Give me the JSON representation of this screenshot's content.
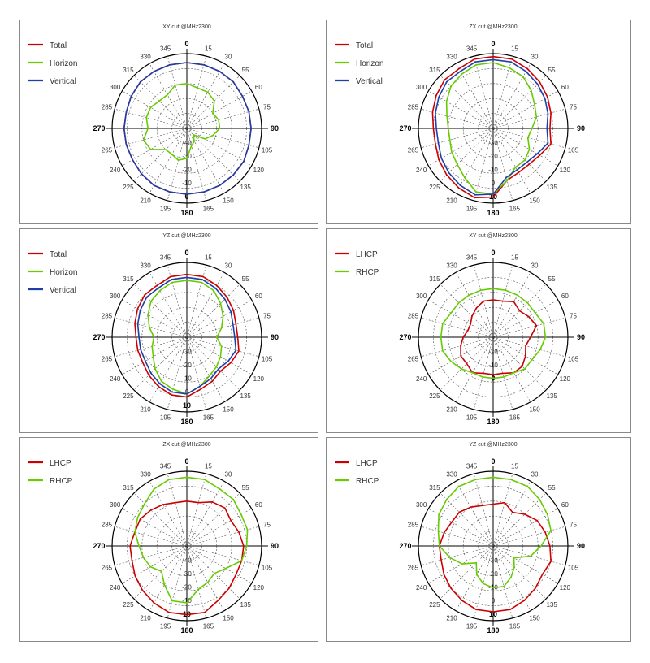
{
  "chart_data": [
    {
      "type": "polar-line",
      "title": "XY cut @MHz2300",
      "angle_labels": [
        "0",
        "15",
        "30",
        "55",
        "60",
        "75",
        "90",
        "105",
        "120",
        "135",
        "150",
        "165",
        "180",
        "195",
        "210",
        "225",
        "240",
        "265",
        "270",
        "285",
        "300",
        "315",
        "330",
        "345"
      ],
      "radial_labels": [
        "-40",
        "-30",
        "-20",
        "-10",
        "0"
      ],
      "rlim": [
        -40,
        10
      ],
      "grid": true,
      "legend_position": "top-left",
      "series": [
        {
          "name": "Total",
          "color": "#cc0000",
          "values": [
            4,
            4,
            4,
            4,
            3,
            3,
            3,
            3,
            4,
            4,
            4,
            4,
            4,
            4,
            4,
            3,
            2,
            2,
            2,
            2,
            3,
            4,
            4,
            4
          ]
        },
        {
          "name": "Horizon",
          "color": "#66cc00",
          "values": [
            -10,
            -12,
            -12,
            -14,
            -20,
            -18,
            -18,
            -22,
            -26,
            -34,
            -30,
            -28,
            -20,
            -18,
            -20,
            -20,
            -12,
            -10,
            -14,
            -12,
            -12,
            -14,
            -14,
            -10
          ]
        },
        {
          "name": "Vertical",
          "color": "#1f3fa8",
          "values": [
            4,
            4,
            4,
            4,
            3,
            3,
            3,
            3,
            4,
            4,
            4,
            4,
            4,
            4,
            4,
            3,
            2,
            2,
            2,
            2,
            3,
            4,
            4,
            4
          ]
        }
      ]
    },
    {
      "type": "polar-line",
      "title": "ZX cut @MHz2300",
      "angle_labels": [
        "0",
        "15",
        "30",
        "55",
        "60",
        "75",
        "90",
        "105",
        "120",
        "135",
        "150",
        "165",
        "180",
        "195",
        "210",
        "225",
        "240",
        "265",
        "270",
        "285",
        "300",
        "315",
        "330",
        "345"
      ],
      "radial_labels": [
        "-30",
        "-20",
        "-10",
        "0",
        "10"
      ],
      "rlim": [
        -40,
        10
      ],
      "grid": true,
      "legend_position": "top-left",
      "series": [
        {
          "name": "Total",
          "color": "#cc0000",
          "values": [
            8,
            8,
            6,
            4,
            2,
            0,
            -2,
            0,
            -4,
            -6,
            -6,
            -4,
            6,
            8,
            6,
            4,
            2,
            0,
            0,
            2,
            4,
            6,
            6,
            8
          ]
        },
        {
          "name": "Horizon",
          "color": "#66cc00",
          "values": [
            4,
            2,
            0,
            -4,
            -8,
            -10,
            -14,
            -16,
            -12,
            -10,
            -10,
            -4,
            4,
            4,
            -2,
            -6,
            -8,
            -10,
            -10,
            -8,
            -4,
            0,
            2,
            4
          ]
        },
        {
          "name": "Vertical",
          "color": "#1f3fa8",
          "values": [
            6,
            6,
            4,
            2,
            0,
            -2,
            -4,
            -2,
            -6,
            -8,
            -8,
            -6,
            4,
            6,
            4,
            2,
            0,
            -2,
            -2,
            0,
            2,
            4,
            4,
            6
          ]
        }
      ]
    },
    {
      "type": "polar-line",
      "title": "YZ cut @MHz2300",
      "angle_labels": [
        "0",
        "15",
        "30",
        "55",
        "60",
        "75",
        "90",
        "105",
        "120",
        "135",
        "150",
        "165",
        "180",
        "195",
        "210",
        "225",
        "240",
        "265",
        "270",
        "285",
        "300",
        "315",
        "330",
        "345"
      ],
      "radial_labels": [
        "-30",
        "-20",
        "-10",
        "0",
        "10"
      ],
      "rlim": [
        -40,
        10
      ],
      "grid": true,
      "legend_position": "top-left",
      "series": [
        {
          "name": "Total",
          "color": "#cc0000",
          "values": [
            2,
            2,
            0,
            -2,
            -4,
            -6,
            -6,
            -4,
            -6,
            -8,
            -6,
            -4,
            0,
            0,
            -2,
            -4,
            -6,
            -6,
            -6,
            -4,
            -2,
            0,
            0,
            2
          ]
        },
        {
          "name": "Horizon",
          "color": "#66cc00",
          "values": [
            -2,
            -2,
            -4,
            -8,
            -12,
            -16,
            -20,
            -16,
            -14,
            -12,
            -10,
            -6,
            -2,
            -4,
            -6,
            -10,
            -14,
            -16,
            -18,
            -14,
            -10,
            -6,
            -4,
            -2
          ]
        },
        {
          "name": "Vertical",
          "color": "#1f3fa8",
          "values": [
            0,
            0,
            -2,
            -4,
            -6,
            -8,
            -8,
            -6,
            -8,
            -10,
            -8,
            -6,
            -2,
            -2,
            -4,
            -6,
            -8,
            -8,
            -8,
            -6,
            -4,
            -2,
            -2,
            0
          ]
        }
      ]
    },
    {
      "type": "polar-line",
      "title": "XY cut @MHz2300",
      "angle_labels": [
        "0",
        "15",
        "30",
        "55",
        "60",
        "75",
        "90",
        "105",
        "120",
        "135",
        "150",
        "165",
        "180",
        "195",
        "210",
        "225",
        "240",
        "265",
        "270",
        "285",
        "300",
        "315",
        "330",
        "345"
      ],
      "radial_labels": [
        "-20",
        "-10",
        "0"
      ],
      "rlim": [
        -30,
        10
      ],
      "grid": true,
      "legend_position": "top-left",
      "series": [
        {
          "name": "LHCP",
          "color": "#cc0000",
          "values": [
            -10,
            -10,
            -8,
            -10,
            -8,
            -6,
            -10,
            -12,
            -10,
            -8,
            -8,
            -10,
            -10,
            -10,
            -8,
            -10,
            -10,
            -12,
            -14,
            -16,
            -16,
            -14,
            -12,
            -10
          ]
        },
        {
          "name": "RHCP",
          "color": "#66cc00",
          "values": [
            -4,
            -4,
            -4,
            -4,
            -4,
            -2,
            -2,
            -4,
            -6,
            -6,
            -8,
            -8,
            -8,
            -8,
            -8,
            -6,
            -4,
            -2,
            -2,
            -2,
            -4,
            -4,
            -4,
            -4
          ]
        }
      ]
    },
    {
      "type": "polar-line",
      "title": "ZX cut @MHz2300",
      "angle_labels": [
        "0",
        "15",
        "30",
        "55",
        "60",
        "75",
        "90",
        "105",
        "120",
        "135",
        "150",
        "165",
        "180",
        "195",
        "210",
        "225",
        "240",
        "265",
        "270",
        "285",
        "300",
        "315",
        "330",
        "345"
      ],
      "radial_labels": [
        "-40",
        "-30",
        "-20",
        "-10",
        "10"
      ],
      "rlim": [
        -40,
        10
      ],
      "grid": true,
      "legend_position": "top-left",
      "series": [
        {
          "name": "LHCP",
          "color": "#cc0000",
          "values": [
            -10,
            -10,
            -6,
            -4,
            -6,
            -4,
            -2,
            -2,
            -2,
            0,
            2,
            6,
            6,
            6,
            4,
            2,
            0,
            -2,
            -2,
            -4,
            -4,
            -6,
            -8,
            -10
          ]
        },
        {
          "name": "RHCP",
          "color": "#66cc00",
          "values": [
            6,
            6,
            4,
            4,
            2,
            2,
            0,
            -2,
            -10,
            -14,
            -12,
            -10,
            -2,
            -2,
            -10,
            -16,
            -12,
            -10,
            -8,
            -4,
            -2,
            0,
            4,
            6
          ]
        }
      ]
    },
    {
      "type": "polar-line",
      "title": "YZ cut @MHz2300",
      "angle_labels": [
        "0",
        "15",
        "30",
        "55",
        "60",
        "75",
        "90",
        "105",
        "120",
        "135",
        "150",
        "165",
        "180",
        "195",
        "210",
        "225",
        "240",
        "265",
        "270",
        "285",
        "300",
        "315",
        "330",
        "345"
      ],
      "radial_labels": [
        "-30",
        "-20",
        "-10",
        "0",
        "10"
      ],
      "rlim": [
        -40,
        10
      ],
      "grid": true,
      "legend_position": "top-left",
      "series": [
        {
          "name": "LHCP",
          "color": "#cc0000",
          "values": [
            -12,
            -10,
            -14,
            -10,
            -6,
            -4,
            -2,
            0,
            -2,
            0,
            2,
            4,
            4,
            4,
            2,
            0,
            -2,
            -4,
            -4,
            -6,
            -8,
            -8,
            -10,
            -12
          ]
        },
        {
          "name": "RHCP",
          "color": "#66cc00",
          "values": [
            6,
            6,
            6,
            4,
            2,
            0,
            -8,
            -14,
            -24,
            -20,
            -16,
            -12,
            -12,
            -14,
            -18,
            -24,
            -16,
            -10,
            -4,
            -2,
            2,
            4,
            6,
            6
          ]
        }
      ]
    }
  ]
}
